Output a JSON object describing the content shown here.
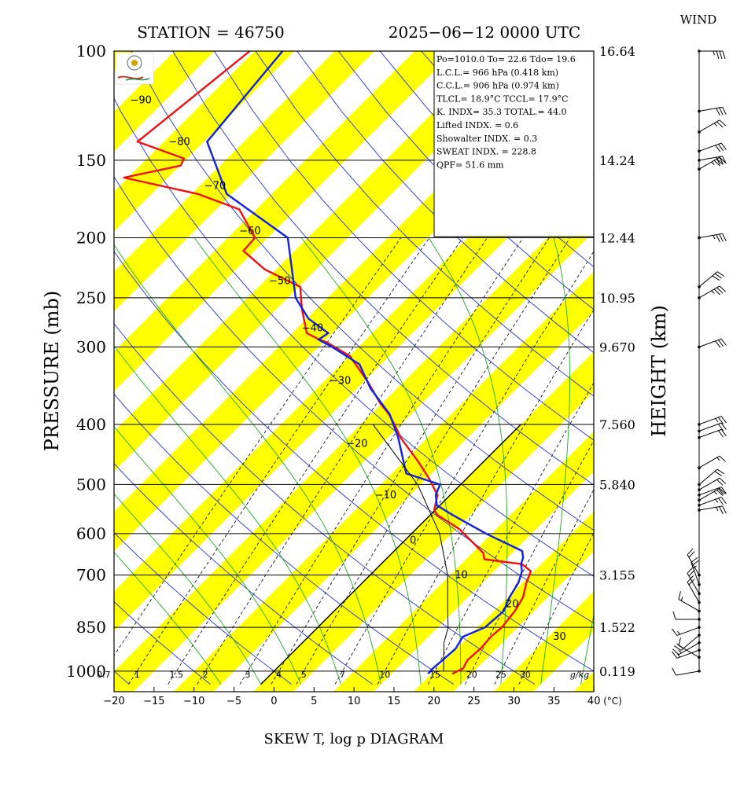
{
  "header": {
    "station": "STATION = 46750",
    "datetime": "2025−06−12 0000 UTC",
    "wind_title": "WIND"
  },
  "axis": {
    "ylabel_left": "PRESSURE (mb)",
    "ylabel_right": "HEIGHT (km)",
    "xlabel": "SKEW T, log p DIAGRAM",
    "x_unit": "(°C)",
    "mix_unit": "g/kg"
  },
  "info_box": {
    "lines": [
      "Po=1010.0 To= 22.6 Tdo= 19.6",
      "L.C.L.= 966 hPa (0.418 km)",
      "C.C.L.= 906 hPa (0.974 km)",
      "TLCL= 18.9°C TCCL= 17.9°C",
      "K. INDX= 35.3 TOTAL.= 44.0",
      "Lifted INDX. = 0.6",
      "Showalter INDX. = 0.3",
      "SWEAT INDX. = 228.8",
      "QPF= 51.6 mm"
    ]
  },
  "colors": {
    "temperature": "#ee1111",
    "dewpoint": "#1122dd",
    "isotherm_band": "#ffff00",
    "dry_adiabat": "#2233cc",
    "moist_adiabat": "#22aa22"
  },
  "chart_data": {
    "type": "line",
    "title": "SKEW T, log p DIAGRAM",
    "pressure_levels": [
      100,
      150,
      200,
      250,
      300,
      400,
      500,
      600,
      700,
      850,
      1000
    ],
    "pressure_tick_labels": [
      "100",
      "150",
      "200",
      "250",
      "300",
      "400",
      "500",
      "600",
      "700",
      "850",
      "1000"
    ],
    "height_labels_km": [
      "16.64",
      "14.24",
      "12.44",
      "10.95",
      "9.670",
      "7.560",
      "5.840",
      "3.155",
      "1.522",
      "0.119"
    ],
    "height_label_pressures": [
      100,
      150,
      200,
      250,
      300,
      400,
      500,
      700,
      850,
      1000
    ],
    "x_ticks": [
      -20,
      -15,
      -10,
      -5,
      0,
      5,
      10,
      15,
      20,
      25,
      30,
      35,
      40
    ],
    "x_tick_labels": [
      "−20",
      "−15",
      "−10",
      "−5",
      "0",
      "5",
      "10",
      "15",
      "20",
      "25",
      "30",
      "35",
      "40"
    ],
    "xlim": [
      -20,
      40
    ],
    "ylim": [
      1050,
      100
    ],
    "isotherm_labels": [
      "−90",
      "−80",
      "−70",
      "−60",
      "−50",
      "−40",
      "−30",
      "−20",
      "−10",
      "0",
      "10",
      "20",
      "30"
    ],
    "isotherm_label_values": [
      -90,
      -80,
      -70,
      -60,
      -50,
      -40,
      -30,
      -20,
      -10,
      0,
      10,
      20,
      30
    ],
    "mixing_ratio_labels": [
      "0.7",
      "1",
      "1.5",
      "2",
      "3",
      "4",
      "5",
      "7",
      "10",
      "15",
      "20",
      "25",
      "30"
    ],
    "series": [
      {
        "name": "Temperature",
        "points": [
          [
            1010,
            22.6
          ],
          [
            990,
            23.3
          ],
          [
            960,
            22.8
          ],
          [
            920,
            23.0
          ],
          [
            880,
            22.8
          ],
          [
            850,
            23.0
          ],
          [
            800,
            22.6
          ],
          [
            760,
            21.9
          ],
          [
            720,
            20.5
          ],
          [
            690,
            19.6
          ],
          [
            672,
            17.6
          ],
          [
            660,
            12.3
          ],
          [
            645,
            11.4
          ],
          [
            590,
            5.4
          ],
          [
            560,
            0.9
          ],
          [
            550,
            -0.1
          ],
          [
            520,
            -1.6
          ],
          [
            490,
            -4.6
          ],
          [
            460,
            -8.1
          ],
          [
            420,
            -13.4
          ],
          [
            400,
            -15.8
          ],
          [
            385,
            -17.8
          ],
          [
            370,
            -20.2
          ],
          [
            340,
            -24.7
          ],
          [
            310,
            -30.0
          ],
          [
            300,
            -33.0
          ],
          [
            295,
            -34.5
          ],
          [
            292,
            -35.8
          ],
          [
            285,
            -38.2
          ],
          [
            260,
            -41.9
          ],
          [
            240,
            -44.8
          ],
          [
            225,
            -51.4
          ],
          [
            210,
            -56.4
          ],
          [
            200,
            -56.6
          ],
          [
            180,
            -62.1
          ],
          [
            170,
            -69.2
          ],
          [
            160,
            -80.5
          ],
          [
            153,
            -74.9
          ],
          [
            149,
            -75.4
          ],
          [
            140,
            -83.3
          ],
          [
            100,
            -80.6
          ]
        ]
      },
      {
        "name": "Dew Point",
        "points": [
          [
            1010,
            19.6
          ],
          [
            990,
            19.5
          ],
          [
            960,
            19.7
          ],
          [
            920,
            19.9
          ],
          [
            880,
            19.3
          ],
          [
            850,
            20.9
          ],
          [
            800,
            21.2
          ],
          [
            760,
            20.2
          ],
          [
            720,
            19.5
          ],
          [
            690,
            18.5
          ],
          [
            672,
            17.5
          ],
          [
            655,
            16.9
          ],
          [
            640,
            16.0
          ],
          [
            600,
            9.3
          ],
          [
            560,
            2.8
          ],
          [
            540,
            -0.4
          ],
          [
            520,
            -1.8
          ],
          [
            500,
            -2.6
          ],
          [
            480,
            -8.2
          ],
          [
            420,
            -13.7
          ],
          [
            385,
            -17.7
          ],
          [
            350,
            -23.3
          ],
          [
            320,
            -27.7
          ],
          [
            300,
            -33.3
          ],
          [
            292,
            -35.9
          ],
          [
            285,
            -35.5
          ],
          [
            270,
            -39.8
          ],
          [
            250,
            -44.0
          ],
          [
            200,
            -52.5
          ],
          [
            170,
            -65.6
          ],
          [
            150,
            -71.4
          ],
          [
            140,
            -74.6
          ],
          [
            100,
            -76.5
          ]
        ]
      },
      {
        "name": "Parcel",
        "points": [
          [
            1000,
            21.2
          ],
          [
            900,
            17.7
          ],
          [
            850,
            16.3
          ],
          [
            800,
            14.2
          ],
          [
            700,
            9.7
          ],
          [
            600,
            3.5
          ],
          [
            500,
            -5.4
          ],
          [
            400,
            -18.5
          ]
        ]
      }
    ],
    "wind": [
      {
        "p": 1000,
        "dir": 260,
        "spd": 10
      },
      {
        "p": 950,
        "dir": 300,
        "spd": 10
      },
      {
        "p": 925,
        "dir": 250,
        "spd": 15
      },
      {
        "p": 900,
        "dir": 240,
        "spd": 15
      },
      {
        "p": 875,
        "dir": 230,
        "spd": 20
      },
      {
        "p": 850,
        "dir": 250,
        "spd": 15
      },
      {
        "p": 825,
        "dir": 270,
        "spd": 10
      },
      {
        "p": 800,
        "dir": 300,
        "spd": 15
      },
      {
        "p": 775,
        "dir": 330,
        "spd": 20
      },
      {
        "p": 750,
        "dir": 330,
        "spd": 25
      },
      {
        "p": 725,
        "dir": 340,
        "spd": 25
      },
      {
        "p": 700,
        "dir": 330,
        "spd": 20
      },
      {
        "p": 550,
        "dir": 80,
        "spd": 25
      },
      {
        "p": 540,
        "dir": 70,
        "spd": 25
      },
      {
        "p": 530,
        "dir": 60,
        "spd": 25
      },
      {
        "p": 520,
        "dir": 70,
        "spd": 20
      },
      {
        "p": 510,
        "dir": 60,
        "spd": 20
      },
      {
        "p": 500,
        "dir": 50,
        "spd": 20
      },
      {
        "p": 470,
        "dir": 60,
        "spd": 15
      },
      {
        "p": 420,
        "dir": 70,
        "spd": 20
      },
      {
        "p": 410,
        "dir": 70,
        "spd": 20
      },
      {
        "p": 400,
        "dir": 70,
        "spd": 25
      },
      {
        "p": 300,
        "dir": 70,
        "spd": 30
      },
      {
        "p": 250,
        "dir": 60,
        "spd": 35
      },
      {
        "p": 240,
        "dir": 50,
        "spd": 30
      },
      {
        "p": 200,
        "dir": 80,
        "spd": 35
      },
      {
        "p": 155,
        "dir": 60,
        "spd": 35
      },
      {
        "p": 150,
        "dir": 80,
        "spd": 30
      },
      {
        "p": 145,
        "dir": 70,
        "spd": 30
      },
      {
        "p": 135,
        "dir": 60,
        "spd": 25
      },
      {
        "p": 125,
        "dir": 80,
        "spd": 30
      },
      {
        "p": 100,
        "dir": 90,
        "spd": 35
      }
    ]
  }
}
